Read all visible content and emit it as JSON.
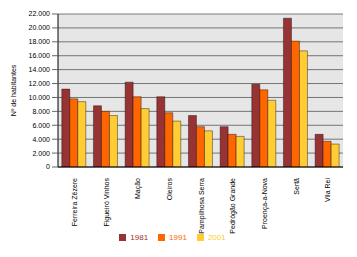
{
  "chart_data": {
    "type": "bar",
    "y_label": "Nº de habitantes",
    "categories": [
      "Ferreira Zêzere",
      "Figueiró Vinhos",
      "Mação",
      "Oleiros",
      "Pampilhosa Serra",
      "Pedrógão Grande",
      "Proença-a-Nova",
      "Sertã",
      "Vila Rei"
    ],
    "series": [
      {
        "name": "1981",
        "color": "#993333",
        "values": [
          11200,
          8800,
          12200,
          10100,
          7400,
          5800,
          11900,
          21400,
          4700
        ]
      },
      {
        "name": "1991",
        "color": "#ff6600",
        "values": [
          9800,
          8000,
          10100,
          7800,
          5800,
          4700,
          11100,
          18100,
          3700
        ]
      },
      {
        "name": "2001",
        "color": "#ffcc33",
        "values": [
          9400,
          7400,
          8400,
          6600,
          5200,
          4400,
          9600,
          16700,
          3300
        ]
      }
    ],
    "ylim": [
      0,
      22000
    ],
    "yticks": [
      0,
      {
        "value": 2000,
        "label": "2.000"
      },
      {
        "value": 4000,
        "label": "4.000"
      },
      {
        "value": 6000,
        "label": "6.000"
      },
      {
        "value": 8000,
        "label": "8.000"
      },
      {
        "value": 10000,
        "label": "10.000"
      },
      {
        "value": 12000,
        "label": "12.000"
      },
      {
        "value": 14000,
        "label": "14.000"
      },
      {
        "value": 16000,
        "label": "16.000"
      },
      {
        "value": 18000,
        "label": "18.000"
      },
      {
        "value": 20000,
        "label": "20.000"
      },
      {
        "value": 22000,
        "label": "22.000"
      }
    ],
    "grid": true,
    "legend": "bottom"
  }
}
